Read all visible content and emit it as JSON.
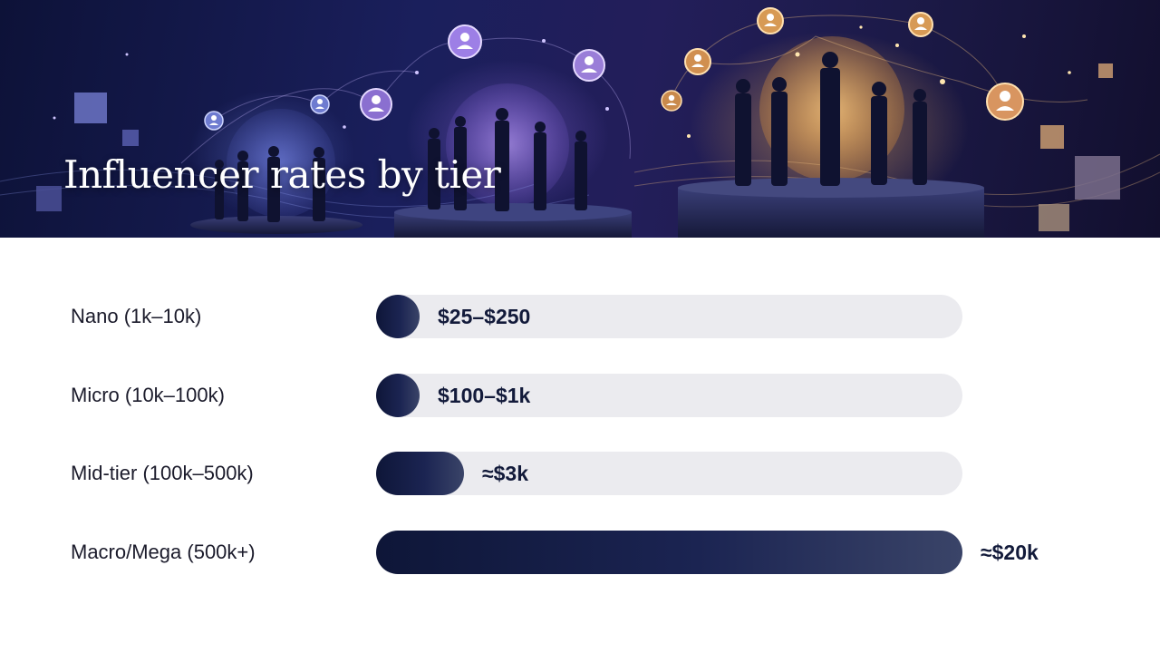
{
  "title": "Influencer rates by tier",
  "colors": {
    "bar_dark": "#0e1638",
    "bar_light": "#3a4468",
    "track": "#ebebef",
    "text": "#1b1b2b",
    "banner_bg": "#1a1f5c",
    "accent_gold": "#e8a858",
    "accent_violet": "#9a7ae0"
  },
  "banner": {
    "icons": [
      "user-node-icon",
      "cube-icon",
      "podium-icon",
      "person-silhouette-icon"
    ]
  },
  "chart_data": {
    "type": "bar",
    "orientation": "horizontal",
    "title": "Influencer rates by tier",
    "xlabel": "",
    "ylabel": "",
    "xlim": [
      0,
      20000
    ],
    "grid": false,
    "categories": [
      "Nano (1k–10k)",
      "Micro (10k–100k)",
      "Mid-tier (100k–500k)",
      "Macro/Mega (500k+)"
    ],
    "value_labels": [
      "$25–$250",
      "$100–$1k",
      "≈$3k",
      "≈$20k"
    ],
    "values": [
      250,
      1000,
      3000,
      20000
    ],
    "series": [
      {
        "values": [
          250,
          1000,
          3000,
          20000
        ]
      }
    ]
  }
}
